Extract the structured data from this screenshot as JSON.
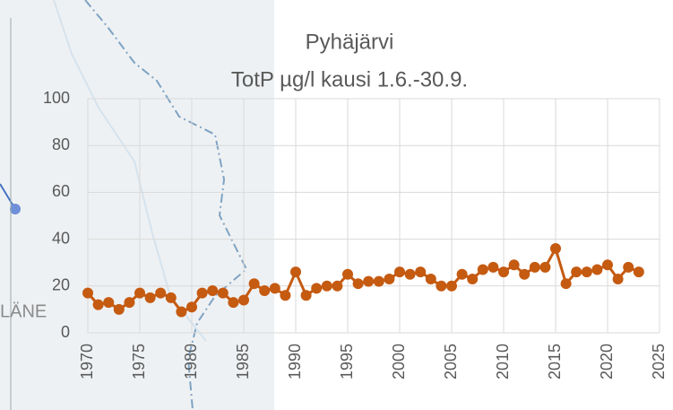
{
  "chart_data": {
    "type": "line",
    "title": "Pyhäjärvi",
    "subtitle": "TotP µg/l kausi 1.6.-30.9.",
    "x": [
      1970,
      1971,
      1972,
      1973,
      1974,
      1975,
      1976,
      1977,
      1978,
      1979,
      1980,
      1981,
      1982,
      1983,
      1984,
      1985,
      1986,
      1987,
      1988,
      1989,
      1990,
      1991,
      1992,
      1993,
      1994,
      1995,
      1996,
      1997,
      1998,
      1999,
      2000,
      2001,
      2002,
      2003,
      2004,
      2005,
      2006,
      2007,
      2008,
      2009,
      2010,
      2011,
      2012,
      2013,
      2014,
      2015,
      2016,
      2017,
      2018,
      2019,
      2020,
      2021,
      2022,
      2023
    ],
    "values": [
      17,
      12,
      13,
      10,
      13,
      17,
      15,
      17,
      15,
      9,
      11,
      17,
      18,
      17,
      13,
      14,
      21,
      18,
      19,
      16,
      26,
      16,
      19,
      20,
      20,
      25,
      21,
      22,
      22,
      23,
      26,
      25,
      26,
      23,
      20,
      20,
      25,
      23,
      27,
      28,
      26,
      29,
      25,
      28,
      28,
      36,
      21,
      26,
      26,
      27,
      29,
      23,
      28,
      26
    ],
    "color": "#c55a11",
    "xlim": [
      1970,
      2025
    ],
    "xticks": [
      1970,
      1975,
      1980,
      1985,
      1990,
      1995,
      2000,
      2005,
      2010,
      2015,
      2020,
      2025
    ],
    "ylim": [
      0,
      100
    ],
    "yticks": [
      0,
      20,
      40,
      60,
      80,
      100
    ],
    "grid": true
  },
  "map": {
    "label": "LÄNE"
  }
}
